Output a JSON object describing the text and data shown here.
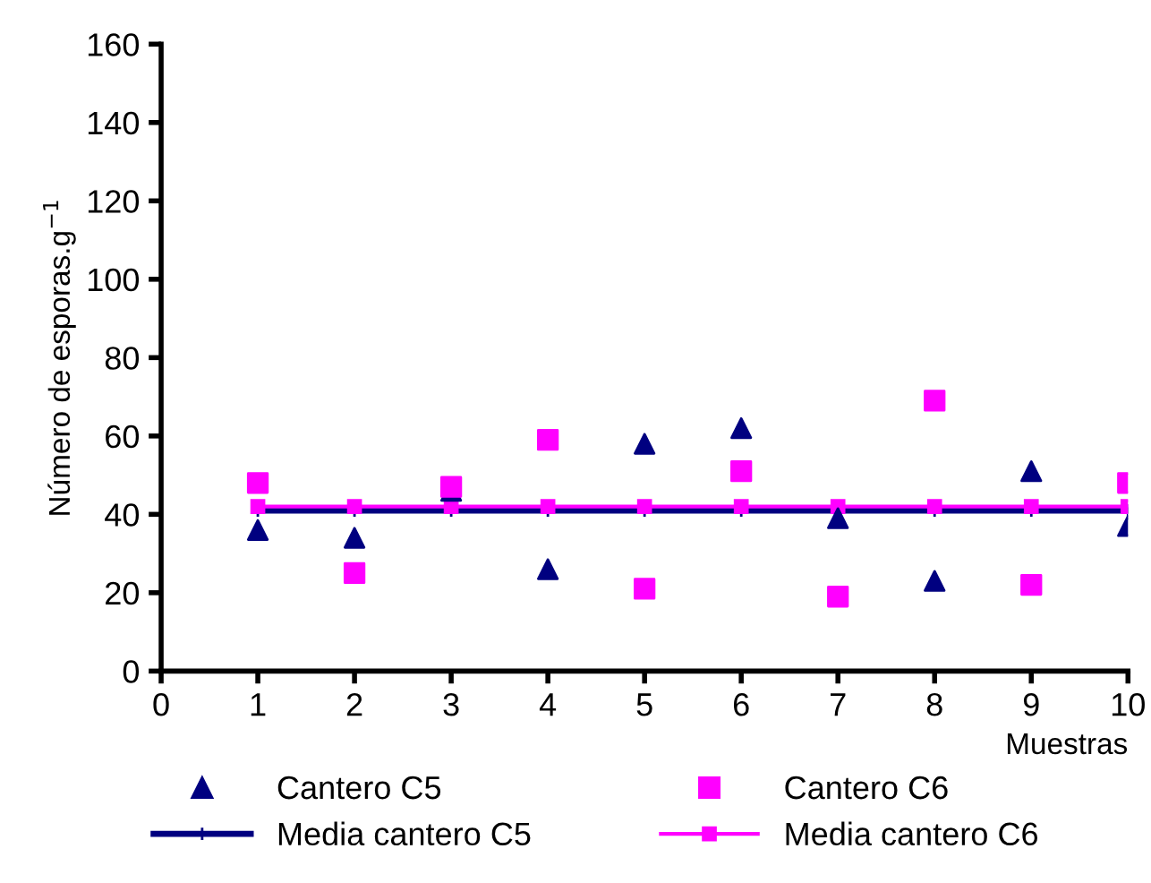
{
  "chart_data": {
    "type": "scatter",
    "xlabel": "Muestras",
    "ylabel": "Número de esporas.g$^{−1}$",
    "x": [
      1,
      2,
      3,
      4,
      5,
      6,
      7,
      8,
      9,
      10
    ],
    "series": [
      {
        "name": "Cantero C5",
        "color": "#000080",
        "marker": "triangle",
        "values": [
          36,
          34,
          46,
          26,
          58,
          62,
          39,
          23,
          51,
          37
        ]
      },
      {
        "name": "Cantero C6",
        "color": "#ff00ff",
        "marker": "square",
        "values": [
          48,
          25,
          47,
          59,
          21,
          51,
          19,
          69,
          22,
          48
        ]
      },
      {
        "name": "Media cantero C5",
        "color": "#000080",
        "type": "line",
        "marker": "cross",
        "values": [
          41,
          41,
          41,
          41,
          41,
          41,
          41,
          41,
          41,
          41
        ]
      },
      {
        "name": "Media cantero C6",
        "color": "#ff00ff",
        "type": "line",
        "marker": "square",
        "values": [
          42,
          42,
          42,
          42,
          42,
          42,
          42,
          42,
          42,
          42
        ]
      }
    ],
    "xlim": [
      0,
      10
    ],
    "xticks": [
      0,
      1,
      2,
      3,
      4,
      5,
      6,
      7,
      8,
      9,
      10
    ],
    "ylim": [
      0,
      160
    ],
    "yticks": [
      0,
      20,
      40,
      60,
      80,
      100,
      120,
      140,
      160
    ],
    "grid": false,
    "legend": "bottom"
  }
}
